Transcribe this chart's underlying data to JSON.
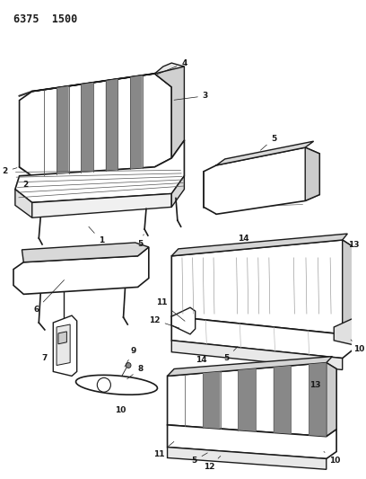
{
  "title": "6375  1500",
  "bg_color": "#ffffff",
  "line_color": "#1a1a1a",
  "fig_width": 4.08,
  "fig_height": 5.33,
  "dpi": 100
}
